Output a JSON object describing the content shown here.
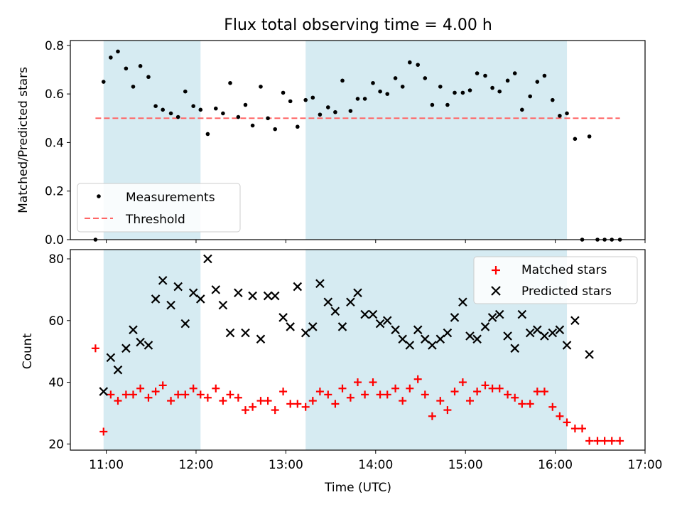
{
  "title": "Flux total observing time = 4.00 h",
  "colors": {
    "shade": "#add8e6",
    "measurement": "#000000",
    "threshold": "#ff6666",
    "matched": "#ff0000",
    "predicted": "#000000"
  },
  "chart_data": [
    {
      "type": "scatter",
      "panel": "top",
      "ylabel": "Matched/Predicted stars",
      "ylim": [
        0,
        0.82
      ],
      "yticks": [
        0.0,
        0.2,
        0.4,
        0.6,
        0.8
      ],
      "ytick_labels": [
        "0.0",
        "0.2",
        "0.4",
        "0.6",
        "0.8"
      ],
      "xlim": [
        10.6,
        17.0
      ],
      "shaded_intervals": [
        [
          10.97,
          12.05
        ],
        [
          13.22,
          16.13
        ]
      ],
      "legend": {
        "placement": "lower-left",
        "entries": [
          "Measurements",
          "Threshold"
        ]
      },
      "series": [
        {
          "name": "Measurements",
          "marker": "dot",
          "points": [
            [
              10.88,
              0.0
            ],
            [
              10.97,
              0.65
            ],
            [
              11.05,
              0.75
            ],
            [
              11.13,
              0.775
            ],
            [
              11.22,
              0.705
            ],
            [
              11.3,
              0.63
            ],
            [
              11.38,
              0.715
            ],
            [
              11.47,
              0.67
            ],
            [
              11.55,
              0.55
            ],
            [
              11.63,
              0.535
            ],
            [
              11.72,
              0.52
            ],
            [
              11.8,
              0.505
            ],
            [
              11.88,
              0.61
            ],
            [
              11.97,
              0.55
            ],
            [
              12.05,
              0.535
            ],
            [
              12.13,
              0.435
            ],
            [
              12.22,
              0.54
            ],
            [
              12.3,
              0.52
            ],
            [
              12.38,
              0.645
            ],
            [
              12.47,
              0.505
            ],
            [
              12.55,
              0.555
            ],
            [
              12.63,
              0.47
            ],
            [
              12.72,
              0.63
            ],
            [
              12.8,
              0.5
            ],
            [
              12.88,
              0.455
            ],
            [
              12.97,
              0.605
            ],
            [
              13.05,
              0.57
            ],
            [
              13.13,
              0.465
            ],
            [
              13.22,
              0.575
            ],
            [
              13.3,
              0.585
            ],
            [
              13.38,
              0.515
            ],
            [
              13.47,
              0.545
            ],
            [
              13.55,
              0.525
            ],
            [
              13.63,
              0.655
            ],
            [
              13.72,
              0.53
            ],
            [
              13.8,
              0.58
            ],
            [
              13.88,
              0.58
            ],
            [
              13.97,
              0.645
            ],
            [
              14.05,
              0.61
            ],
            [
              14.13,
              0.6
            ],
            [
              14.22,
              0.665
            ],
            [
              14.3,
              0.63
            ],
            [
              14.38,
              0.73
            ],
            [
              14.47,
              0.72
            ],
            [
              14.55,
              0.665
            ],
            [
              14.63,
              0.555
            ],
            [
              14.72,
              0.63
            ],
            [
              14.8,
              0.555
            ],
            [
              14.88,
              0.605
            ],
            [
              14.97,
              0.605
            ],
            [
              15.05,
              0.615
            ],
            [
              15.13,
              0.685
            ],
            [
              15.22,
              0.675
            ],
            [
              15.3,
              0.625
            ],
            [
              15.38,
              0.61
            ],
            [
              15.47,
              0.655
            ],
            [
              15.55,
              0.685
            ],
            [
              15.63,
              0.535
            ],
            [
              15.72,
              0.59
            ],
            [
              15.8,
              0.65
            ],
            [
              15.88,
              0.675
            ],
            [
              15.97,
              0.575
            ],
            [
              16.05,
              0.51
            ],
            [
              16.13,
              0.52
            ],
            [
              16.22,
              0.415
            ],
            [
              16.3,
              0.0
            ],
            [
              16.38,
              0.425
            ],
            [
              16.47,
              0.0
            ],
            [
              16.55,
              0.0
            ],
            [
              16.63,
              0.0
            ],
            [
              16.72,
              0.0
            ]
          ]
        },
        {
          "name": "Threshold",
          "line": "dashed",
          "points": [
            [
              10.88,
              0.5
            ],
            [
              16.72,
              0.5
            ]
          ]
        }
      ]
    },
    {
      "type": "scatter",
      "panel": "bottom",
      "xlabel": "Time (UTC)",
      "ylabel": "Count",
      "xlim": [
        10.6,
        17.0
      ],
      "ylim": [
        18,
        83
      ],
      "yticks": [
        20,
        40,
        60,
        80
      ],
      "ytick_labels": [
        "20",
        "40",
        "60",
        "80"
      ],
      "xticks": [
        11,
        12,
        13,
        14,
        15,
        16,
        17
      ],
      "xtick_labels": [
        "11:00",
        "12:00",
        "13:00",
        "14:00",
        "15:00",
        "16:00",
        "17:00"
      ],
      "shaded_intervals": [
        [
          10.97,
          12.05
        ],
        [
          13.22,
          16.13
        ]
      ],
      "legend": {
        "placement": "upper-right",
        "entries": [
          "Matched stars",
          "Predicted stars"
        ]
      },
      "series": [
        {
          "name": "Matched stars",
          "marker": "plus",
          "points": [
            [
              10.88,
              51
            ],
            [
              10.97,
              24
            ],
            [
              11.05,
              36
            ],
            [
              11.13,
              34
            ],
            [
              11.22,
              36
            ],
            [
              11.3,
              36
            ],
            [
              11.38,
              38
            ],
            [
              11.47,
              35
            ],
            [
              11.55,
              37
            ],
            [
              11.63,
              39
            ],
            [
              11.72,
              34
            ],
            [
              11.8,
              36
            ],
            [
              11.88,
              36
            ],
            [
              11.97,
              38
            ],
            [
              12.05,
              36
            ],
            [
              12.13,
              35
            ],
            [
              12.22,
              38
            ],
            [
              12.3,
              34
            ],
            [
              12.38,
              36
            ],
            [
              12.47,
              35
            ],
            [
              12.55,
              31
            ],
            [
              12.63,
              32
            ],
            [
              12.72,
              34
            ],
            [
              12.8,
              34
            ],
            [
              12.88,
              31
            ],
            [
              12.97,
              37
            ],
            [
              13.05,
              33
            ],
            [
              13.13,
              33
            ],
            [
              13.22,
              32
            ],
            [
              13.3,
              34
            ],
            [
              13.38,
              37
            ],
            [
              13.47,
              36
            ],
            [
              13.55,
              33
            ],
            [
              13.63,
              38
            ],
            [
              13.72,
              35
            ],
            [
              13.8,
              40
            ],
            [
              13.88,
              36
            ],
            [
              13.97,
              40
            ],
            [
              14.05,
              36
            ],
            [
              14.13,
              36
            ],
            [
              14.22,
              38
            ],
            [
              14.3,
              34
            ],
            [
              14.38,
              38
            ],
            [
              14.47,
              41
            ],
            [
              14.55,
              36
            ],
            [
              14.63,
              29
            ],
            [
              14.72,
              34
            ],
            [
              14.8,
              31
            ],
            [
              14.88,
              37
            ],
            [
              14.97,
              40
            ],
            [
              15.05,
              34
            ],
            [
              15.13,
              37
            ],
            [
              15.22,
              39
            ],
            [
              15.3,
              38
            ],
            [
              15.38,
              38
            ],
            [
              15.47,
              36
            ],
            [
              15.55,
              35
            ],
            [
              15.63,
              33
            ],
            [
              15.72,
              33
            ],
            [
              15.8,
              37
            ],
            [
              15.88,
              37
            ],
            [
              15.97,
              32
            ],
            [
              16.05,
              29
            ],
            [
              16.13,
              27
            ],
            [
              16.22,
              25
            ],
            [
              16.3,
              25
            ],
            [
              16.38,
              21
            ],
            [
              16.47,
              21
            ],
            [
              16.55,
              21
            ],
            [
              16.63,
              21
            ],
            [
              16.72,
              21
            ]
          ]
        },
        {
          "name": "Predicted stars",
          "marker": "x",
          "points": [
            [
              10.97,
              37
            ],
            [
              11.05,
              48
            ],
            [
              11.13,
              44
            ],
            [
              11.22,
              51
            ],
            [
              11.3,
              57
            ],
            [
              11.38,
              53
            ],
            [
              11.47,
              52
            ],
            [
              11.55,
              67
            ],
            [
              11.63,
              73
            ],
            [
              11.72,
              65
            ],
            [
              11.8,
              71
            ],
            [
              11.88,
              59
            ],
            [
              11.97,
              69
            ],
            [
              12.05,
              67
            ],
            [
              12.13,
              80
            ],
            [
              12.22,
              70
            ],
            [
              12.3,
              65
            ],
            [
              12.38,
              56
            ],
            [
              12.47,
              69
            ],
            [
              12.55,
              56
            ],
            [
              12.63,
              68
            ],
            [
              12.72,
              54
            ],
            [
              12.8,
              68
            ],
            [
              12.88,
              68
            ],
            [
              12.97,
              61
            ],
            [
              13.05,
              58
            ],
            [
              13.13,
              71
            ],
            [
              13.22,
              56
            ],
            [
              13.3,
              58
            ],
            [
              13.38,
              72
            ],
            [
              13.47,
              66
            ],
            [
              13.55,
              63
            ],
            [
              13.63,
              58
            ],
            [
              13.72,
              66
            ],
            [
              13.8,
              69
            ],
            [
              13.88,
              62
            ],
            [
              13.97,
              62
            ],
            [
              14.05,
              59
            ],
            [
              14.13,
              60
            ],
            [
              14.22,
              57
            ],
            [
              14.3,
              54
            ],
            [
              14.38,
              52
            ],
            [
              14.47,
              57
            ],
            [
              14.55,
              54
            ],
            [
              14.63,
              52
            ],
            [
              14.72,
              54
            ],
            [
              14.8,
              56
            ],
            [
              14.88,
              61
            ],
            [
              14.97,
              66
            ],
            [
              15.05,
              55
            ],
            [
              15.13,
              54
            ],
            [
              15.22,
              58
            ],
            [
              15.3,
              61
            ],
            [
              15.38,
              62
            ],
            [
              15.47,
              55
            ],
            [
              15.55,
              51
            ],
            [
              15.63,
              62
            ],
            [
              15.72,
              56
            ],
            [
              15.8,
              57
            ],
            [
              15.88,
              55
            ],
            [
              15.97,
              56
            ],
            [
              16.05,
              57
            ],
            [
              16.13,
              52
            ],
            [
              16.22,
              60
            ],
            [
              16.38,
              49
            ]
          ]
        }
      ]
    }
  ]
}
